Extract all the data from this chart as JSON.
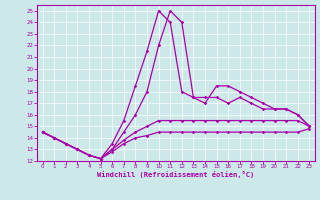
{
  "xlabel": "Windchill (Refroidissement éolien,°C)",
  "xlim": [
    -0.5,
    23.5
  ],
  "ylim": [
    12,
    25.5
  ],
  "xticks": [
    0,
    1,
    2,
    3,
    4,
    5,
    6,
    7,
    8,
    9,
    10,
    11,
    12,
    13,
    14,
    15,
    16,
    17,
    18,
    19,
    20,
    21,
    22,
    23
  ],
  "yticks": [
    12,
    13,
    14,
    15,
    16,
    17,
    18,
    19,
    20,
    21,
    22,
    23,
    24,
    25
  ],
  "bg_color": "#cce8e8",
  "line_color": "#aa00aa",
  "line1_x": [
    0,
    1,
    2,
    3,
    4,
    5,
    6,
    7,
    8,
    9,
    10,
    11,
    12,
    13,
    14,
    15,
    16,
    17,
    18,
    19,
    20,
    21,
    22,
    23
  ],
  "line1_y": [
    14.5,
    14.0,
    13.5,
    13.0,
    12.5,
    12.2,
    12.8,
    13.5,
    14.0,
    14.2,
    14.5,
    14.5,
    14.5,
    14.5,
    14.5,
    14.5,
    14.5,
    14.5,
    14.5,
    14.5,
    14.5,
    14.5,
    14.5,
    14.8
  ],
  "line2_x": [
    0,
    1,
    2,
    3,
    4,
    5,
    6,
    7,
    8,
    9,
    10,
    11,
    12,
    13,
    14,
    15,
    16,
    17,
    18,
    19,
    20,
    21,
    22,
    23
  ],
  "line2_y": [
    14.5,
    14.0,
    13.5,
    13.0,
    12.5,
    12.2,
    13.0,
    13.8,
    14.5,
    15.0,
    15.5,
    15.5,
    15.5,
    15.5,
    15.5,
    15.5,
    15.5,
    15.5,
    15.5,
    15.5,
    15.5,
    15.5,
    15.5,
    15.0
  ],
  "line3_x": [
    0,
    1,
    2,
    3,
    4,
    5,
    6,
    7,
    8,
    9,
    10,
    11,
    12,
    13,
    14,
    15,
    16,
    17,
    18,
    19,
    20,
    21,
    22,
    23
  ],
  "line3_y": [
    14.5,
    14.0,
    13.5,
    13.0,
    12.5,
    12.2,
    13.0,
    14.5,
    16.0,
    18.0,
    22.0,
    25.0,
    24.0,
    17.5,
    17.5,
    17.5,
    17.0,
    17.5,
    17.0,
    16.5,
    16.5,
    16.5,
    16.0,
    15.0
  ],
  "line4_x": [
    0,
    1,
    2,
    3,
    4,
    5,
    6,
    7,
    8,
    9,
    10,
    11,
    12,
    13,
    14,
    15,
    16,
    17,
    18,
    19,
    20,
    21,
    22,
    23
  ],
  "line4_y": [
    14.5,
    14.0,
    13.5,
    13.0,
    12.5,
    12.2,
    13.5,
    15.5,
    18.5,
    21.5,
    25.0,
    24.0,
    18.0,
    17.5,
    17.0,
    18.5,
    18.5,
    18.0,
    17.5,
    17.0,
    16.5,
    16.5,
    16.0,
    15.0
  ]
}
